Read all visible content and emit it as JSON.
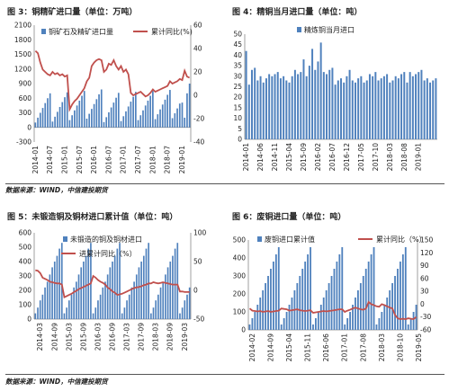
{
  "source_line_1": "数据来源：WIND，中信建投期货",
  "source_line_2": "数据来源：WIND，中信建投期货",
  "colors": {
    "bar": "#4f81bd",
    "line": "#c0504d",
    "axis": "#888888",
    "text": "#222222"
  },
  "chart_data": [
    {
      "title": "图 3：铜精矿进口量（单位：万吨）",
      "type": "bar",
      "legend": [
        "铜矿石及精矿进口量",
        "累计同比(%)"
      ],
      "ylim": [
        -300,
        2100
      ],
      "yticks": [
        -300,
        0,
        300,
        600,
        900,
        1200,
        1500,
        1800,
        2100
      ],
      "y2lim": [
        -40,
        60
      ],
      "y2ticks": [
        -40,
        -20,
        0,
        20,
        40,
        60
      ],
      "xticks": [
        "2014-01",
        "2014-07",
        "2015-01",
        "2015-07",
        "2016-01",
        "2016-07",
        "2017-01",
        "2017-07",
        "2018-01",
        "2018-07",
        "2019-01"
      ],
      "tick_start": 0,
      "tick_step": 6,
      "series": [
        {
          "name": "铜矿石及精矿进口量",
          "values": [
            100,
            200,
            300,
            400,
            500,
            600,
            700,
            120,
            220,
            320,
            420,
            520,
            620,
            720,
            150,
            250,
            350,
            450,
            550,
            650,
            750,
            180,
            280,
            380,
            480,
            580,
            680,
            780,
            110,
            210,
            310,
            410,
            510,
            610,
            710,
            130,
            230,
            330,
            430,
            530,
            630,
            730,
            150,
            250,
            350,
            450,
            550,
            650,
            750,
            170,
            270,
            370,
            470,
            570,
            670,
            770,
            190,
            290,
            390,
            490,
            510,
            200,
            700,
            900
          ]
        },
        {
          "name": "累计同比(%)",
          "values": [
            38,
            36,
            28,
            22,
            20,
            18,
            17,
            20,
            18,
            19,
            17,
            18,
            16,
            17,
            -12,
            -8,
            -5,
            -3,
            0,
            3,
            6,
            12,
            15,
            25,
            28,
            30,
            31,
            30,
            20,
            22,
            27,
            26,
            30,
            25,
            22,
            25,
            20,
            22,
            18,
            2,
            0,
            1,
            2,
            3,
            1,
            -1,
            0,
            2,
            5,
            3,
            4,
            5,
            6,
            7,
            8,
            12,
            10,
            11,
            12,
            14,
            13,
            21,
            16,
            15
          ]
        }
      ]
    },
    {
      "title": "图 4：精铜当月进口量（单位：吨）",
      "type": "bar",
      "legend": [
        "精炼铜当月进口"
      ],
      "ylim": [
        0,
        50
      ],
      "yticks": [
        0,
        5,
        10,
        15,
        20,
        25,
        30,
        35,
        40,
        45,
        50
      ],
      "xticks": [
        "2014-01",
        "2014-06",
        "2014-11",
        "2015-04",
        "2015-09",
        "2016-02",
        "2016-07",
        "2016-12",
        "2017-05",
        "2017-10",
        "2018-03",
        "2018-08",
        "2019-01"
      ],
      "tick_start": 0,
      "tick_step": 5,
      "series": [
        {
          "name": "精炼铜当月进口",
          "values": [
            42,
            26,
            33,
            34,
            28,
            30,
            27,
            29,
            31,
            30,
            31,
            32,
            29,
            30,
            28,
            27,
            30,
            33,
            31,
            32,
            38,
            30,
            35,
            43,
            33,
            37,
            46,
            32,
            31,
            33,
            34,
            26,
            28,
            29,
            27,
            30,
            33,
            28,
            27,
            29,
            30,
            27,
            28,
            31,
            30,
            32,
            28,
            29,
            30,
            31,
            27,
            28,
            30,
            29,
            31,
            32,
            27,
            32,
            30,
            31,
            32,
            33,
            28,
            29,
            27,
            28,
            29
          ]
        }
      ]
    },
    {
      "title": "图 5：未锻造铜及铜材进口累计值（单位：吨）",
      "type": "bar",
      "legend": [
        "未锻造的铜及铜材进口",
        "进累计同比（%）"
      ],
      "ylim": [
        0,
        600
      ],
      "yticks": [
        0,
        100,
        200,
        300,
        400,
        500,
        600
      ],
      "y2lim": [
        -50,
        100
      ],
      "y2ticks": [
        -50,
        0,
        50,
        100
      ],
      "xticks": [
        "2014-03",
        "2014-09",
        "2015-03",
        "2015-09",
        "2016-03",
        "2016-09",
        "2017-03",
        "2017-09",
        "2018-03",
        "2018-09",
        "2019-03"
      ],
      "tick_start": 2,
      "tick_step": 6,
      "series": [
        {
          "name": "未锻造的铜及铜材进口",
          "values": [
            40,
            80,
            130,
            170,
            220,
            260,
            310,
            360,
            400,
            440,
            490,
            530,
            40,
            80,
            130,
            170,
            220,
            260,
            310,
            360,
            400,
            440,
            490,
            530,
            40,
            80,
            130,
            170,
            220,
            260,
            310,
            360,
            400,
            440,
            490,
            530,
            40,
            80,
            130,
            170,
            220,
            260,
            310,
            360,
            400,
            440,
            490,
            530,
            40,
            80,
            130,
            170,
            220,
            260,
            310,
            360,
            400,
            440,
            490,
            530,
            40,
            80,
            130,
            170,
            220
          ]
        },
        {
          "name": "进累计同比（%）",
          "values": [
            35,
            34,
            30,
            22,
            20,
            18,
            15,
            14,
            13,
            12,
            12,
            10,
            -12,
            -10,
            -8,
            -6,
            -3,
            -1,
            2,
            4,
            6,
            8,
            10,
            12,
            25,
            22,
            18,
            15,
            13,
            10,
            5,
            2,
            -2,
            -4,
            -8,
            -7,
            -6,
            -4,
            -2,
            0,
            2,
            4,
            5,
            6,
            7,
            9,
            10,
            12,
            12,
            14,
            13,
            12,
            13,
            14,
            13,
            12,
            11,
            10,
            10,
            10,
            -2,
            -2,
            -3,
            -3,
            -3
          ]
        }
      ]
    },
    {
      "title": "图 6：废铜进口量（单位：吨）",
      "type": "bar",
      "legend": [
        "废铜进口累计值",
        "累计同比（%）"
      ],
      "ylim": [
        0,
        500
      ],
      "yticks": [
        0,
        100,
        200,
        300,
        400,
        500
      ],
      "y2lim": [
        -60,
        150
      ],
      "y2ticks": [
        -60,
        -30,
        0,
        30,
        60,
        90,
        120,
        150
      ],
      "xticks": [
        "2014-02",
        "2014-09",
        "2015-04",
        "2015-11",
        "2016-06",
        "2017-01",
        "2017-08",
        "2018-03",
        "2018-10",
        "2019-05"
      ],
      "tick_start": 1,
      "tick_step": 7,
      "series": [
        {
          "name": "废铜进口累计值",
          "values": [
            30,
            65,
            100,
            140,
            180,
            220,
            260,
            300,
            340,
            380,
            420,
            460,
            30,
            65,
            100,
            140,
            180,
            220,
            260,
            300,
            340,
            380,
            420,
            460,
            30,
            65,
            100,
            140,
            180,
            220,
            260,
            300,
            340,
            380,
            420,
            460,
            30,
            65,
            100,
            140,
            180,
            220,
            260,
            300,
            340,
            380,
            420,
            460,
            30,
            65,
            100,
            140,
            180,
            220,
            260,
            300,
            340,
            380,
            420,
            460,
            30,
            65,
            100,
            140
          ]
        },
        {
          "name": "累计同比（%）",
          "values": [
            -10,
            -15,
            -16,
            -17,
            -16,
            -18,
            -17,
            -16,
            -18,
            -17,
            -16,
            -15,
            -10,
            -11,
            -12,
            -15,
            -14,
            -13,
            -12,
            -14,
            -15,
            -16,
            -15,
            -14,
            -20,
            -19,
            -18,
            -17,
            -16,
            -17,
            -16,
            -15,
            -14,
            -13,
            -12,
            -12,
            -18,
            -15,
            -13,
            -10,
            -8,
            -10,
            -12,
            -13,
            -10,
            5,
            0,
            -2,
            -5,
            -6,
            0,
            -2,
            -5,
            -8,
            -10,
            -25,
            -33,
            -35,
            -34,
            -35,
            -33,
            -34,
            -35,
            -30
          ]
        }
      ]
    }
  ]
}
